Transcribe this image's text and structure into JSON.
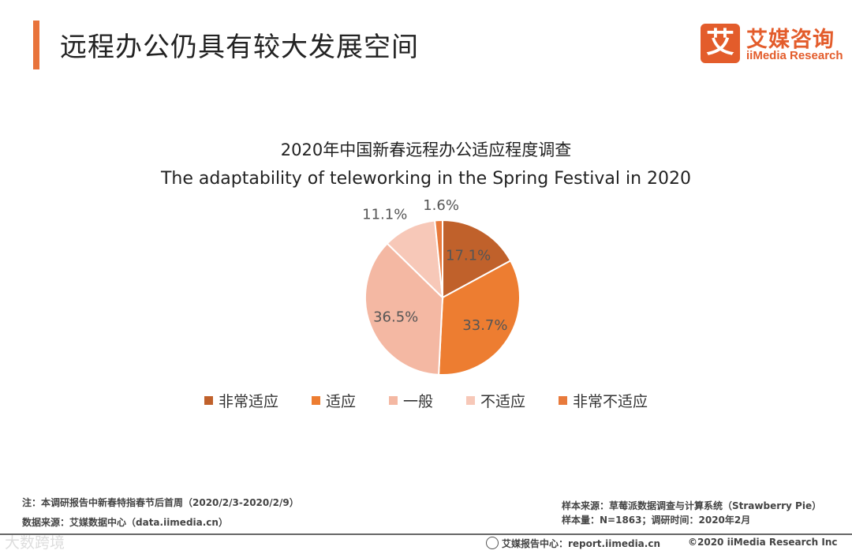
{
  "header": {
    "title": "远程办公仍具有较大发展空间",
    "accent_color": "#e8733b"
  },
  "logo": {
    "mark": "艾",
    "cn": "艾媒咨询",
    "en": "iiMedia Research",
    "color": "#e35c2b"
  },
  "chart_data": {
    "type": "pie",
    "title": "2020年中国新春远程办公适应程度调查",
    "subtitle": "The adaptability of teleworking in the Spring Festival in 2020",
    "categories": [
      "非常适应",
      "适应",
      "一般",
      "不适应",
      "非常不适应"
    ],
    "values": [
      17.1,
      33.7,
      36.5,
      11.1,
      1.6
    ],
    "labels": [
      "17.1%",
      "33.7%",
      "36.5%",
      "11.1%",
      "1.6%"
    ],
    "colors": [
      "#c0612b",
      "#ed7d31",
      "#f4b8a3",
      "#f7c8b8",
      "#e87a3c"
    ],
    "legend_position": "bottom"
  },
  "notes": {
    "note1": "注：本调研报告中新春特指春节后首周（2020/2/3-2020/2/9）",
    "source": "数据来源：艾媒数据中心（data.iimedia.cn）",
    "sample_source": "样本来源：草莓派数据调查与计算系统（Strawberry Pie）",
    "sample_size": "样本量：N=1863；调研时间：2020年2月"
  },
  "footer": {
    "watermark": "大数跨境",
    "report_center": "艾媒报告中心：report.iimedia.cn",
    "copyright": "©2020  iiMedia Research Inc"
  }
}
